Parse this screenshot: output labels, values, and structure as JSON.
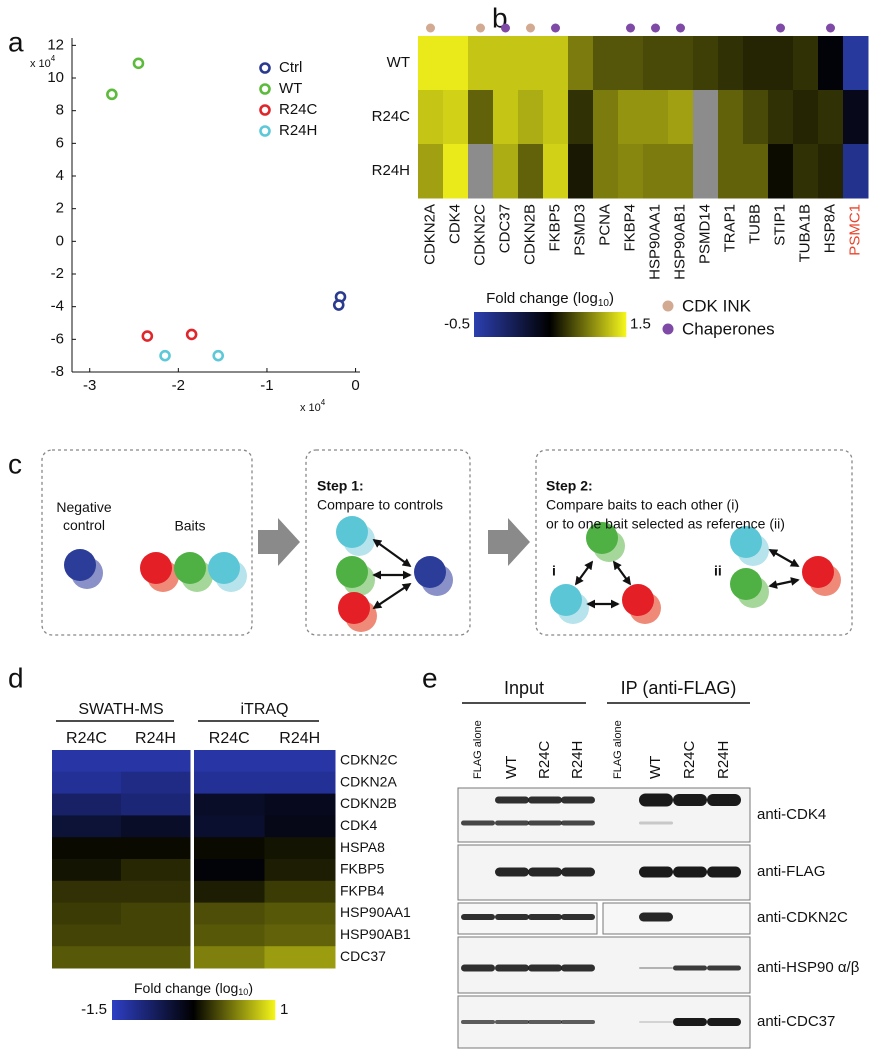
{
  "panel_labels": [
    "a",
    "b",
    "c",
    "d",
    "e"
  ],
  "chart_data": [
    {
      "type": "scatter",
      "x_multiplier": {
        "text": "x 10",
        "exp": "4"
      },
      "y_multiplier": {
        "text": "x 10",
        "exp": "4"
      },
      "xlim": [
        -3.2,
        0.05
      ],
      "ylim": [
        -8,
        12.45
      ],
      "xticks": [
        -3,
        -2,
        -1,
        0
      ],
      "yticks": [
        -8,
        -6,
        -4,
        -2,
        0,
        2,
        4,
        6,
        8,
        10,
        12
      ],
      "legend": "upper right",
      "series": [
        {
          "name": "Ctrl",
          "color": "#2a3a8f",
          "x": [
            -0.17,
            -0.19
          ],
          "y": [
            -3.4,
            -3.9
          ]
        },
        {
          "name": "WT",
          "color": "#5dbb3c",
          "x": [
            -2.75,
            -2.45
          ],
          "y": [
            9.0,
            10.9
          ]
        },
        {
          "name": "R24C",
          "color": "#e0262b",
          "x": [
            -2.35,
            -1.85
          ],
          "y": [
            -5.8,
            -5.7
          ]
        },
        {
          "name": "R24H",
          "color": "#5cc8d8",
          "x": [
            -2.15,
            -1.55
          ],
          "y": [
            -7.0,
            -7.0
          ]
        }
      ]
    },
    {
      "type": "heatmap",
      "categories": [
        "CDKN2A",
        "CDK4",
        "CDKN2C",
        "CDC37",
        "CDKN2B",
        "FKBP5",
        "PSMD3",
        "PCNA",
        "FKBP4",
        "HSP90AA1",
        "HSP90AB1",
        "PSMD14",
        "TRAP1",
        "TUBB",
        "STIP1",
        "TUBA1B",
        "HSP8A",
        "PSMC1"
      ],
      "category_colors": [
        null,
        null,
        null,
        null,
        null,
        null,
        null,
        null,
        null,
        null,
        null,
        null,
        null,
        null,
        null,
        null,
        null,
        "#e8452c"
      ],
      "series": [
        {
          "name": "WT",
          "values": [
            1.45,
            1.45,
            1.3,
            1.3,
            1.3,
            1.3,
            1.0,
            0.85,
            0.85,
            0.8,
            0.8,
            0.75,
            0.7,
            0.65,
            0.65,
            0.7,
            0.45,
            -0.4
          ]
        },
        {
          "name": "R24C",
          "values": [
            1.3,
            1.35,
            0.9,
            1.3,
            1.2,
            1.3,
            0.7,
            1.0,
            1.1,
            1.1,
            1.15,
            null,
            0.9,
            0.8,
            0.7,
            0.65,
            0.7,
            0.35
          ]
        },
        {
          "name": "R24H",
          "values": [
            1.15,
            1.45,
            null,
            1.2,
            0.9,
            1.35,
            0.6,
            1.0,
            1.05,
            1.0,
            1.0,
            null,
            0.9,
            0.9,
            0.55,
            0.7,
            0.65,
            -0.3
          ]
        }
      ],
      "clim": [
        -0.5,
        1.5
      ],
      "colormap": [
        "#2c3fb0",
        "#000000",
        "#f6f61c"
      ],
      "null_color": "#8c8c8c",
      "colorbar": {
        "label": "Fold change (log",
        "label_sub": "10",
        "label_end": ")",
        "ticks": [
          -0.5,
          1.5
        ]
      },
      "groups": [
        {
          "name": "CDK INK",
          "color": "#d2aa92"
        },
        {
          "name": "Chaperones",
          "color": "#7e4aa5"
        }
      ],
      "column_group": [
        0,
        null,
        0,
        1,
        0,
        1,
        null,
        null,
        1,
        1,
        1,
        null,
        null,
        null,
        1,
        null,
        1,
        null
      ]
    },
    {
      "type": "grouped-heatmap",
      "categories": [
        "CDKN2C",
        "CDKN2A",
        "CDKN2B",
        "CDK4",
        "HSPA8",
        "FKBP5",
        "FKPB4",
        "HSP90AA1",
        "HSP90AB1",
        "CDC37"
      ],
      "groups": [
        {
          "name": "SWATH-MS",
          "series": [
            {
              "name": "R24C",
              "values": [
                -1.3,
                -1.2,
                -0.9,
                -0.6,
                -0.2,
                -0.15,
                0.0,
                0.05,
                0.1,
                0.2
              ]
            },
            {
              "name": "R24H",
              "values": [
                -1.3,
                -1.1,
                -1.0,
                -0.5,
                -0.2,
                -0.05,
                0.0,
                0.1,
                0.1,
                0.2
              ]
            }
          ]
        },
        {
          "name": "iTRAQ",
          "series": [
            {
              "name": "R24C",
              "values": [
                -1.3,
                -1.2,
                -0.5,
                -0.55,
                -0.2,
                -0.3,
                -0.1,
                0.15,
                0.2,
                0.4
              ]
            },
            {
              "name": "R24H",
              "values": [
                -1.3,
                -1.2,
                -0.45,
                -0.4,
                -0.15,
                -0.1,
                0.05,
                0.2,
                0.25,
                0.55
              ]
            }
          ]
        }
      ],
      "clim": [
        -1.5,
        1
      ],
      "colormap": [
        "#2e3fc4",
        "#000000",
        "#f4f41a"
      ],
      "colorbar": {
        "label": "Fold change (log",
        "label_sub": "10",
        "label_end": ")",
        "ticks": [
          -1.5,
          1
        ]
      }
    }
  ],
  "diagram": {
    "box1": {
      "negative_control": "Negative control",
      "baits": "Baits"
    },
    "step1": {
      "title": "Step 1:",
      "text": "Compare to controls"
    },
    "step2": {
      "title": "Step 2:",
      "lines": [
        "Compare baits to each other (i)",
        "or to one bait selected as reference (ii)"
      ],
      "i": "i",
      "ii": "ii"
    }
  },
  "blot": {
    "groups": [
      {
        "name": "Input",
        "lanes": [
          "FLAG alone",
          "WT",
          "R24C",
          "R24H"
        ]
      },
      {
        "name": "IP (anti-FLAG)",
        "lanes": [
          "FLAG alone",
          "WT",
          "R24C",
          "R24H"
        ]
      }
    ],
    "antibodies": [
      "anti-CDK4",
      "anti-FLAG",
      "anti-CDKN2C",
      "anti-HSP90 α/β",
      "anti-CDC37"
    ]
  }
}
